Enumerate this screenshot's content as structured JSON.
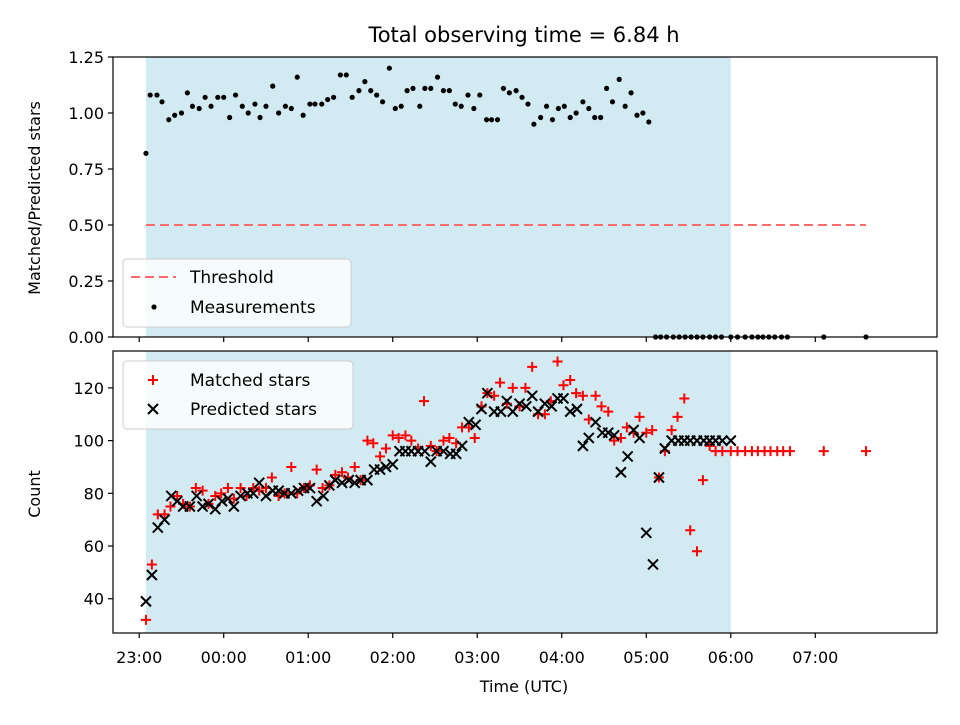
{
  "chart_data": [
    {
      "type": "scatter",
      "title": "Total observing time = 6.84 h",
      "xlabel": "",
      "ylabel": "Matched/Predicted stars",
      "ylim": [
        0,
        1.25
      ],
      "xlim": [
        -1.31,
        8.44
      ],
      "yticks": [
        "0.00",
        "0.25",
        "0.50",
        "0.75",
        "1.00",
        "1.25"
      ],
      "shaded_interval": [
        -0.92,
        6.0
      ],
      "shade_color": "#add8e6",
      "legend": {
        "placement": "lower-left"
      },
      "series": [
        {
          "name": "Threshold",
          "style": "dashed-line",
          "color": "#ff6b6b",
          "x": [
            -0.92,
            7.6
          ],
          "y": [
            0.5,
            0.5
          ]
        },
        {
          "name": "Measurements",
          "style": "dots",
          "color": "#000000",
          "x": [
            -0.92,
            -0.87,
            -0.79,
            -0.73,
            -0.65,
            -0.58,
            -0.5,
            -0.43,
            -0.37,
            -0.29,
            -0.22,
            -0.15,
            -0.07,
            0.0,
            0.07,
            0.14,
            0.22,
            0.29,
            0.37,
            0.43,
            0.5,
            0.58,
            0.65,
            0.73,
            0.8,
            0.87,
            0.94,
            1.02,
            1.08,
            1.16,
            1.23,
            1.3,
            1.38,
            1.45,
            1.52,
            1.6,
            1.67,
            1.74,
            1.81,
            1.88,
            1.96,
            2.03,
            2.1,
            2.17,
            2.24,
            2.32,
            2.38,
            2.45,
            2.53,
            2.6,
            2.67,
            2.74,
            2.81,
            2.89,
            2.96,
            3.03,
            3.11,
            3.17,
            3.24,
            3.31,
            3.38,
            3.46,
            3.53,
            3.6,
            3.67,
            3.75,
            3.82,
            3.89,
            3.96,
            4.03,
            4.1,
            4.17,
            4.25,
            4.32,
            4.39,
            4.46,
            4.53,
            4.6,
            4.68,
            4.75,
            4.82,
            4.89,
            4.96,
            5.03,
            5.11,
            5.17,
            5.24,
            5.32,
            5.39,
            5.46,
            5.53,
            5.6,
            5.67,
            5.75,
            5.82,
            5.89,
            6.0,
            6.08,
            6.17,
            6.25,
            6.32,
            6.38,
            6.45,
            6.52,
            6.6,
            6.67,
            7.1,
            7.6
          ],
          "y": [
            0.82,
            1.08,
            1.08,
            1.05,
            0.97,
            0.99,
            1.0,
            1.09,
            1.03,
            1.02,
            1.07,
            1.03,
            1.07,
            1.07,
            0.98,
            1.08,
            1.03,
            1.0,
            1.04,
            0.98,
            1.03,
            1.12,
            1.0,
            1.03,
            1.02,
            1.16,
            0.99,
            1.04,
            1.04,
            1.04,
            1.06,
            1.07,
            1.17,
            1.17,
            1.07,
            1.1,
            1.14,
            1.1,
            1.08,
            1.05,
            1.2,
            1.02,
            1.03,
            1.1,
            1.11,
            1.03,
            1.11,
            1.11,
            1.16,
            1.1,
            1.1,
            1.04,
            1.03,
            1.08,
            1.02,
            1.08,
            0.97,
            0.97,
            0.97,
            1.11,
            1.09,
            1.1,
            1.07,
            1.04,
            0.95,
            0.98,
            1.03,
            0.97,
            1.02,
            1.03,
            0.98,
            1.0,
            1.05,
            1.02,
            0.98,
            0.98,
            1.11,
            1.05,
            1.15,
            1.03,
            1.09,
            0.99,
            1.0,
            0.96,
            0.0,
            0.0,
            0.0,
            0.0,
            0.0,
            0.0,
            0.0,
            0.0,
            0.0,
            0.0,
            0.0,
            0.0,
            0.0,
            0.0,
            0.0,
            0.0,
            0.0,
            0.0,
            0.0,
            0.0,
            0.0,
            0.0,
            0.0,
            0.0
          ]
        }
      ]
    },
    {
      "type": "scatter",
      "title": "",
      "xlabel": "Time (UTC)",
      "ylabel": "Count",
      "ylim": [
        27,
        134
      ],
      "xlim": [
        -1.31,
        8.44
      ],
      "yticks": [
        "40",
        "60",
        "80",
        "100",
        "120"
      ],
      "xticks": [
        "23:00",
        "00:00",
        "01:00",
        "02:00",
        "03:00",
        "04:00",
        "05:00",
        "06:00",
        "07:00"
      ],
      "shaded_interval": [
        -0.92,
        6.0
      ],
      "shade_color": "#add8e6",
      "legend": {
        "placement": "upper-left"
      },
      "series": [
        {
          "name": "Matched stars",
          "marker": "plus",
          "color": "#ff0000",
          "x": [
            -0.92,
            -0.85,
            -0.78,
            -0.7,
            -0.63,
            -0.55,
            -0.48,
            -0.4,
            -0.33,
            -0.25,
            -0.18,
            -0.1,
            -0.03,
            0.05,
            0.12,
            0.2,
            0.27,
            0.35,
            0.42,
            0.5,
            0.57,
            0.65,
            0.72,
            0.8,
            0.87,
            0.95,
            1.02,
            1.1,
            1.17,
            1.25,
            1.32,
            1.4,
            1.47,
            1.55,
            1.62,
            1.7,
            1.77,
            1.85,
            1.92,
            2.0,
            2.07,
            2.15,
            2.22,
            2.3,
            2.37,
            2.45,
            2.52,
            2.6,
            2.67,
            2.75,
            2.82,
            2.9,
            2.97,
            3.05,
            3.12,
            3.2,
            3.27,
            3.35,
            3.42,
            3.5,
            3.57,
            3.65,
            3.72,
            3.8,
            3.87,
            3.95,
            4.02,
            4.1,
            4.17,
            4.25,
            4.32,
            4.4,
            4.47,
            4.55,
            4.62,
            4.7,
            4.77,
            4.85,
            4.92,
            5.0,
            5.07,
            5.15,
            5.22,
            5.3,
            5.37,
            5.45,
            5.52,
            5.6,
            5.67,
            5.75,
            5.82,
            5.9,
            6.0,
            6.08,
            6.17,
            6.25,
            6.32,
            6.4,
            6.47,
            6.55,
            6.62,
            6.7,
            7.1,
            7.6
          ],
          "y": [
            32,
            53,
            72,
            72,
            75,
            79,
            76,
            75,
            82,
            81,
            76,
            79,
            80,
            82,
            78,
            82,
            79,
            82,
            81,
            82,
            86,
            79,
            80,
            90,
            80,
            82,
            83,
            89,
            82,
            83,
            87,
            88,
            86,
            90,
            85,
            100,
            99,
            94,
            97,
            102,
            101,
            102,
            100,
            97,
            115,
            98,
            96,
            100,
            101,
            99,
            105,
            105,
            101,
            113,
            118,
            117,
            122,
            114,
            120,
            113,
            120,
            128,
            110,
            110,
            115,
            130,
            121,
            123,
            118,
            117,
            108,
            117,
            113,
            111,
            100,
            101,
            105,
            103,
            109,
            103,
            104,
            86,
            96,
            104,
            109,
            116,
            66,
            58,
            85,
            98,
            96,
            96,
            96,
            96,
            96,
            96,
            96,
            96,
            96,
            96,
            96,
            96,
            96,
            96
          ]
        },
        {
          "name": "Predicted stars",
          "marker": "x",
          "color": "#000000",
          "x": [
            -0.92,
            -0.85,
            -0.78,
            -0.7,
            -0.62,
            -0.55,
            -0.48,
            -0.4,
            -0.32,
            -0.25,
            -0.18,
            -0.1,
            -0.02,
            0.05,
            0.12,
            0.2,
            0.28,
            0.35,
            0.42,
            0.5,
            0.58,
            0.65,
            0.72,
            0.8,
            0.88,
            0.95,
            1.02,
            1.1,
            1.18,
            1.25,
            1.32,
            1.4,
            1.48,
            1.55,
            1.62,
            1.7,
            1.78,
            1.85,
            1.92,
            2.0,
            2.08,
            2.15,
            2.22,
            2.3,
            2.38,
            2.45,
            2.52,
            2.6,
            2.68,
            2.75,
            2.82,
            2.9,
            2.98,
            3.05,
            3.12,
            3.2,
            3.28,
            3.35,
            3.42,
            3.5,
            3.58,
            3.65,
            3.72,
            3.8,
            3.88,
            3.95,
            4.02,
            4.1,
            4.18,
            4.25,
            4.32,
            4.4,
            4.48,
            4.55,
            4.62,
            4.7,
            4.78,
            4.85,
            4.92,
            5.0,
            5.08,
            5.15,
            5.22,
            5.3,
            5.38,
            5.45,
            5.52,
            5.6,
            5.68,
            5.75,
            5.82,
            5.9,
            6.0
          ],
          "y": [
            39,
            49,
            67,
            70,
            79,
            77,
            75,
            75,
            79,
            75,
            76,
            74,
            77,
            78,
            75,
            79,
            80,
            80,
            84,
            79,
            81,
            81,
            80,
            80,
            81,
            82,
            82,
            77,
            79,
            83,
            85,
            84,
            85,
            84,
            85,
            85,
            89,
            89,
            90,
            91,
            96,
            96,
            96,
            96,
            96,
            92,
            96,
            96,
            95,
            95,
            98,
            107,
            106,
            112,
            118,
            111,
            111,
            115,
            111,
            114,
            113,
            117,
            111,
            114,
            113,
            116,
            116,
            111,
            112,
            98,
            101,
            107,
            103,
            103,
            102,
            88,
            94,
            104,
            101,
            65,
            53,
            86,
            97,
            100,
            100,
            100,
            100,
            100,
            100,
            100,
            100,
            100,
            100
          ]
        }
      ]
    }
  ]
}
